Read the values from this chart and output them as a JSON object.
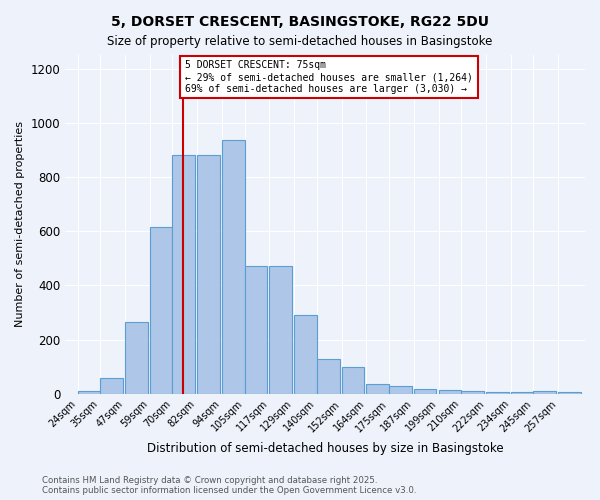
{
  "title": "5, DORSET CRESCENT, BASINGSTOKE, RG22 5DU",
  "subtitle": "Size of property relative to semi-detached houses in Basingstoke",
  "xlabel": "Distribution of semi-detached houses by size in Basingstoke",
  "ylabel": "Number of semi-detached properties",
  "categories": [
    "24sqm",
    "35sqm",
    "47sqm",
    "59sqm",
    "70sqm",
    "82sqm",
    "94sqm",
    "105sqm",
    "117sqm",
    "129sqm",
    "140sqm",
    "152sqm",
    "164sqm",
    "175sqm",
    "187sqm",
    "199sqm",
    "210sqm",
    "222sqm",
    "234sqm",
    "245sqm",
    "257sqm"
  ],
  "values": [
    10,
    57,
    265,
    615,
    880,
    880,
    935,
    470,
    470,
    290,
    130,
    100,
    38,
    28,
    18,
    15,
    10,
    7,
    5,
    12,
    8
  ],
  "bar_color": "#aec6e8",
  "bar_edge_color": "#5a9fd4",
  "background_color": "#eef2fb",
  "vline_x": 75,
  "vline_color": "#cc0000",
  "annotation_title": "5 DORSET CRESCENT: 75sqm",
  "annotation_line1": "← 29% of semi-detached houses are smaller (1,264)",
  "annotation_line2": "69% of semi-detached houses are larger (3,030) →",
  "annotation_box_color": "#ffffff",
  "annotation_box_edge_color": "#cc0000",
  "ylim": [
    0,
    1250
  ],
  "yticks": [
    0,
    200,
    400,
    600,
    800,
    1000,
    1200
  ],
  "footer1": "Contains HM Land Registry data © Crown copyright and database right 2025.",
  "footer2": "Contains public sector information licensed under the Open Government Licence v3.0.",
  "bin_starts": [
    24,
    35,
    47,
    59,
    70,
    82,
    94,
    105,
    117,
    129,
    140,
    152,
    164,
    175,
    187,
    199,
    210,
    222,
    234,
    245,
    257
  ],
  "bin_width": 11
}
